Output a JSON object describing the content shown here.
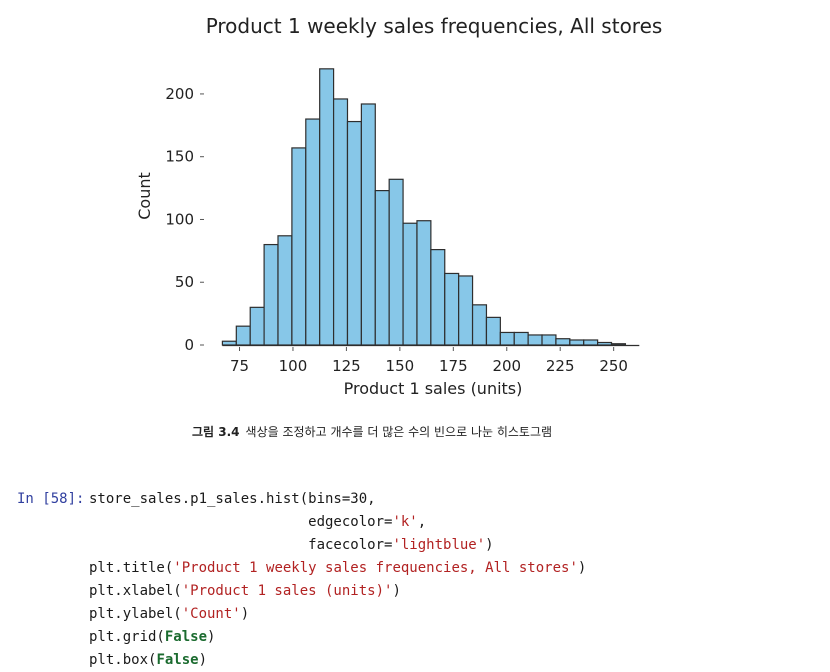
{
  "chart_data": {
    "type": "bar",
    "title": "Product 1 weekly sales frequencies, All stores",
    "xlabel": "Product 1 sales (units)",
    "ylabel": "Count",
    "xlim": [
      64,
      267
    ],
    "ylim": [
      0,
      235
    ],
    "xticks": [
      75,
      100,
      125,
      150,
      175,
      200,
      225,
      250
    ],
    "yticks": [
      0,
      50,
      100,
      150,
      200
    ],
    "grid": false,
    "bin_start": 67,
    "bin_width": 6.5,
    "bins": 30,
    "values": [
      3,
      15,
      30,
      80,
      87,
      157,
      180,
      220,
      196,
      178,
      192,
      123,
      132,
      97,
      99,
      76,
      57,
      55,
      32,
      22,
      10,
      10,
      8,
      8,
      5,
      4,
      4,
      2,
      1,
      0
    ]
  },
  "caption": {
    "number": "그림 3.4",
    "text": "색상을 조정하고 개수를 더 많은 수의 빈으로 나눈 히스토그램"
  },
  "code_cell": {
    "prompt": "In [58]:",
    "lines": [
      [
        {
          "t": "store_sales.p1_sales.hist(bins=30,"
        }
      ],
      [
        {
          "t": "                          edgecolor="
        },
        {
          "t": "'k'",
          "c": "str"
        },
        {
          "t": ","
        }
      ],
      [
        {
          "t": "                          facecolor="
        },
        {
          "t": "'lightblue'",
          "c": "str"
        },
        {
          "t": ")"
        }
      ],
      [
        {
          "t": "plt.title("
        },
        {
          "t": "'Product 1 weekly sales frequencies, All stores'",
          "c": "str"
        },
        {
          "t": ")"
        }
      ],
      [
        {
          "t": "plt.xlabel("
        },
        {
          "t": "'Product 1 sales (units)'",
          "c": "str"
        },
        {
          "t": ")"
        }
      ],
      [
        {
          "t": "plt.ylabel("
        },
        {
          "t": "'Count'",
          "c": "str"
        },
        {
          "t": ")"
        }
      ],
      [
        {
          "t": "plt.grid("
        },
        {
          "t": "False",
          "c": "kw"
        },
        {
          "t": ")"
        }
      ],
      [
        {
          "t": "plt.box("
        },
        {
          "t": "False",
          "c": "kw"
        },
        {
          "t": ")"
        }
      ]
    ]
  }
}
